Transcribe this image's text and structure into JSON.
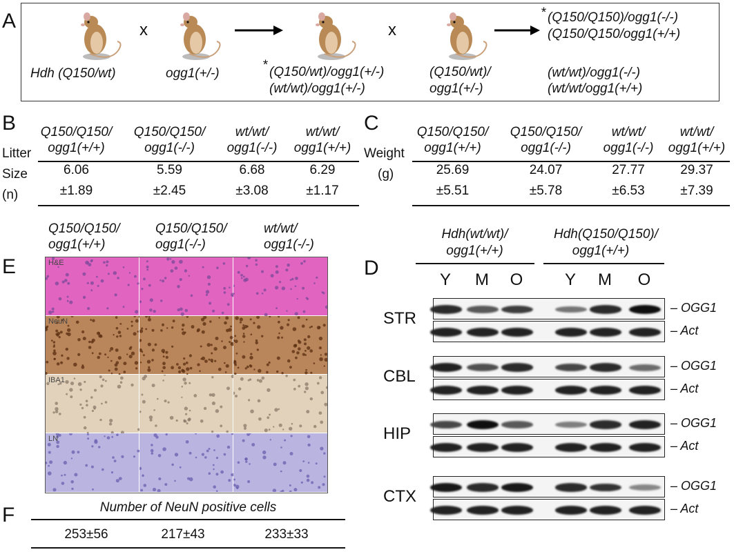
{
  "panelA": {
    "label": "A",
    "parent1": "Hdh (Q150/wt)",
    "parent2": "ogg1(+/-)",
    "cross1": "x",
    "cross2": "x",
    "f1_line1": "(Q150/wt)/ogg1(+/-)",
    "f1_line2": "(wt/wt)/ogg1(+/-)",
    "asterisk": "*",
    "mate_line1": "(Q150/wt)/",
    "mate_line2": "ogg1(+/-)",
    "offspring_line1": "(Q150/Q150)/ogg1(-/-)",
    "offspring_line2": "(Q150/Q150/ogg1(+/+)",
    "offspring_line3": "(wt/wt)/ogg1(-/-)",
    "offspring_line4": "(wt/wt/ogg1(+/+)"
  },
  "panelB": {
    "label": "B",
    "row_label_1": "Litter",
    "row_label_2": "Size",
    "row_label_3": "(n)",
    "columns": [
      {
        "h1": "Q150/Q150/",
        "h2": "ogg1(+/+)",
        "mean": "6.06",
        "sd": "±1.89"
      },
      {
        "h1": "Q150/Q150/",
        "h2": "ogg1(-/-)",
        "mean": "5.59",
        "sd": "±2.45"
      },
      {
        "h1": "wt/wt/",
        "h2": "ogg1(-/-)",
        "mean": "6.68",
        "sd": "±3.08"
      },
      {
        "h1": "wt/wt/",
        "h2": "ogg1(+/+)",
        "mean": "6.29",
        "sd": "±1.17"
      }
    ]
  },
  "panelC": {
    "label": "C",
    "row_label_1": "Weight",
    "row_label_2": "(g)",
    "columns": [
      {
        "h1": "Q150/Q150/",
        "h2": "ogg1(+/+)",
        "mean": "25.69",
        "sd": "±5.51"
      },
      {
        "h1": "Q150/Q150/",
        "h2": "ogg1(-/-)",
        "mean": "24.07",
        "sd": "±5.78"
      },
      {
        "h1": "wt/wt/",
        "h2": "ogg1(-/-)",
        "mean": "27.77",
        "sd": "±6.53"
      },
      {
        "h1": "wt/wt/",
        "h2": "ogg1(+/+)",
        "mean": "29.37",
        "sd": "±7.39"
      }
    ]
  },
  "panelE": {
    "label": "E",
    "headers": [
      {
        "h1": "Q150/Q150/",
        "h2": "ogg1(+/+)"
      },
      {
        "h1": "Q150/Q150/",
        "h2": "ogg1(-/-)"
      },
      {
        "h1": "wt/wt/",
        "h2": "ogg1(-/-)"
      }
    ],
    "row_labels": [
      "H&E",
      "NeuN",
      "IBA1",
      "LN"
    ],
    "row_colors": [
      "#e064c0",
      "#b9855a",
      "#e3d2bb",
      "#b9b4e0"
    ]
  },
  "panelF": {
    "label": "F",
    "title": "Number of NeuN positive cells",
    "values": [
      "253±56",
      "217±43",
      "233±33"
    ]
  },
  "panelD": {
    "label": "D",
    "group1_l1": "Hdh(wt/wt)/",
    "group1_l2": "ogg1(+/+)",
    "group2_l1": "Hdh(Q150/Q150)/",
    "group2_l2": "ogg1(+/+)",
    "lanes": [
      "Y",
      "M",
      "O",
      "Y",
      "M",
      "O"
    ],
    "blots": [
      {
        "region": "STR",
        "ogg1": "– OGG1",
        "act": "– Act",
        "ogg1_intensity": [
          0.85,
          0.6,
          0.75,
          0.45,
          0.85,
          1.0
        ]
      },
      {
        "region": "CBL",
        "ogg1": "– OGG1",
        "act": "– Act",
        "ogg1_intensity": [
          0.9,
          0.65,
          0.85,
          0.7,
          0.85,
          0.5
        ]
      },
      {
        "region": "HIP",
        "ogg1": "– OGG1",
        "act": "– Act",
        "ogg1_intensity": [
          0.7,
          1.0,
          0.6,
          0.4,
          0.85,
          0.9
        ]
      },
      {
        "region": "CTX",
        "ogg1": "– OGG1",
        "act": "– Act",
        "ogg1_intensity": [
          0.95,
          0.85,
          0.95,
          0.85,
          0.8,
          0.35
        ]
      }
    ]
  }
}
